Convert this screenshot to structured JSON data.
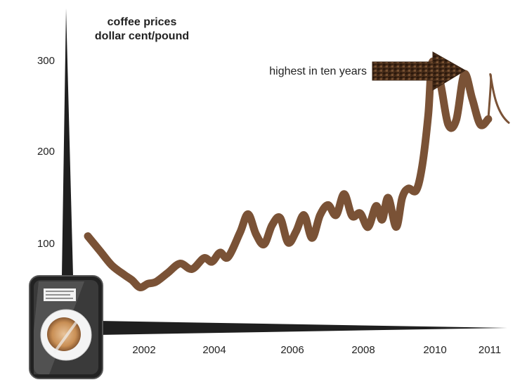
{
  "chart_data": {
    "type": "line",
    "title": "coffee prices",
    "subtitle": "dollar cent/pound",
    "xlabel": "",
    "ylabel": "",
    "annotation": "highest in ten years",
    "x_ticks": [
      2002,
      2004,
      2006,
      2008,
      2010,
      2011
    ],
    "y_ticks": [
      100,
      200,
      300
    ],
    "xlim": [
      2000.5,
      2011.4
    ],
    "ylim": [
      0,
      360
    ],
    "grid": false,
    "legend": "none",
    "line_color": "#7a5236",
    "axis_color": "#1f1f1f",
    "icon": "coffee-cup-icon",
    "series": [
      {
        "x": [
          2001.0,
          2001.3,
          2001.6,
          2001.9,
          2002.1,
          2002.3,
          2002.5,
          2002.7,
          2003.0,
          2003.3,
          2003.6,
          2003.9,
          2004.1,
          2004.3,
          2004.5,
          2004.8,
          2005.0,
          2005.2,
          2005.4,
          2005.6,
          2005.8,
          2006.0,
          2006.2,
          2006.4,
          2006.6,
          2006.8,
          2007.0,
          2007.2,
          2007.4,
          2007.6,
          2007.8,
          2008.0,
          2008.2,
          2008.35,
          2008.5,
          2008.7,
          2008.85,
          2009.0,
          2009.2,
          2009.35,
          2009.5,
          2009.6,
          2009.8,
          2010.0,
          2010.2,
          2010.4,
          2010.6,
          2010.8,
          2011.0,
          2011.1,
          2011.2,
          2011.3
        ],
        "y": [
          108,
          92,
          76,
          66,
          60,
          52,
          56,
          58,
          68,
          78,
          72,
          84,
          80,
          90,
          85,
          112,
          132,
          110,
          99,
          120,
          128,
          101,
          113,
          131,
          106,
          131,
          142,
          131,
          154,
          130,
          133,
          118,
          141,
          126,
          150,
          118,
          150,
          160,
          158,
          185,
          240,
          298,
          276,
          230,
          235,
          285,
          258,
          230,
          236,
          236,
          236,
          236
        ]
      }
    ]
  }
}
